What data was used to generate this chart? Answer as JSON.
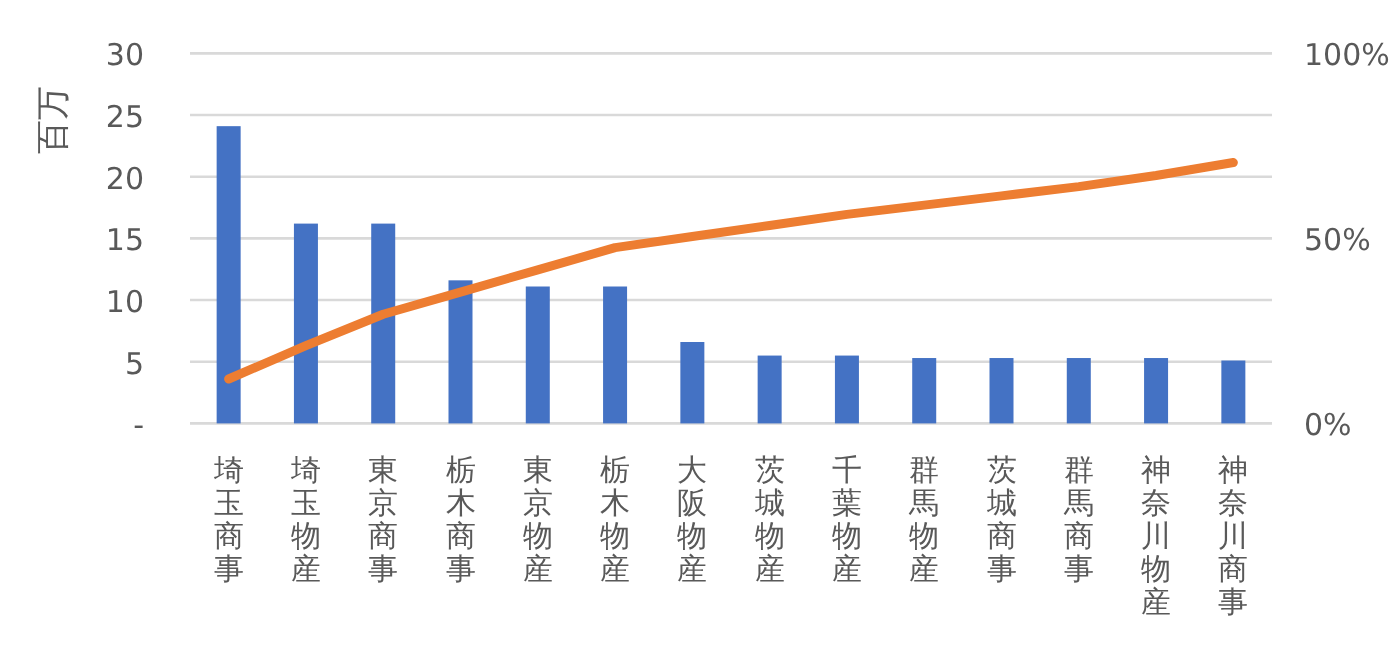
{
  "chart_data": {
    "type": "bar",
    "ylabel": "百万",
    "categories": [
      "埼玉商事",
      "埼玉物産",
      "東京商事",
      "栃木商事",
      "東京物産",
      "栃木物産",
      "大阪物産",
      "茨城物産",
      "千葉物産",
      "群馬物産",
      "茨城商事",
      "群馬商事",
      "神奈川物産",
      "神奈川商事"
    ],
    "series": [
      {
        "color": "#4472c4",
        "values": [
          24.1,
          16.2,
          16.2,
          11.6,
          11.1,
          11.1,
          6.6,
          5.5,
          5.5,
          5.3,
          5.3,
          5.3,
          5.3,
          5.1
        ]
      },
      {
        "type": "line",
        "axis": "y2",
        "color": "#ed7d31",
        "values": [
          12,
          21,
          29.5,
          35.5,
          41.5,
          47.5,
          50.5,
          53.5,
          56.5,
          59,
          61.5,
          64,
          67,
          70.5
        ]
      }
    ],
    "ylim": [
      0,
      30
    ],
    "yticks": [
      {
        "value": 0,
        "label": "-"
      },
      5,
      10,
      15,
      20,
      25,
      30
    ],
    "y2lim": [
      0,
      100
    ],
    "y2ticks": [
      {
        "value": 0,
        "label": "0%"
      },
      {
        "value": 50,
        "label": "50%"
      },
      {
        "value": 100,
        "label": "100%"
      }
    ],
    "grid": "y"
  }
}
